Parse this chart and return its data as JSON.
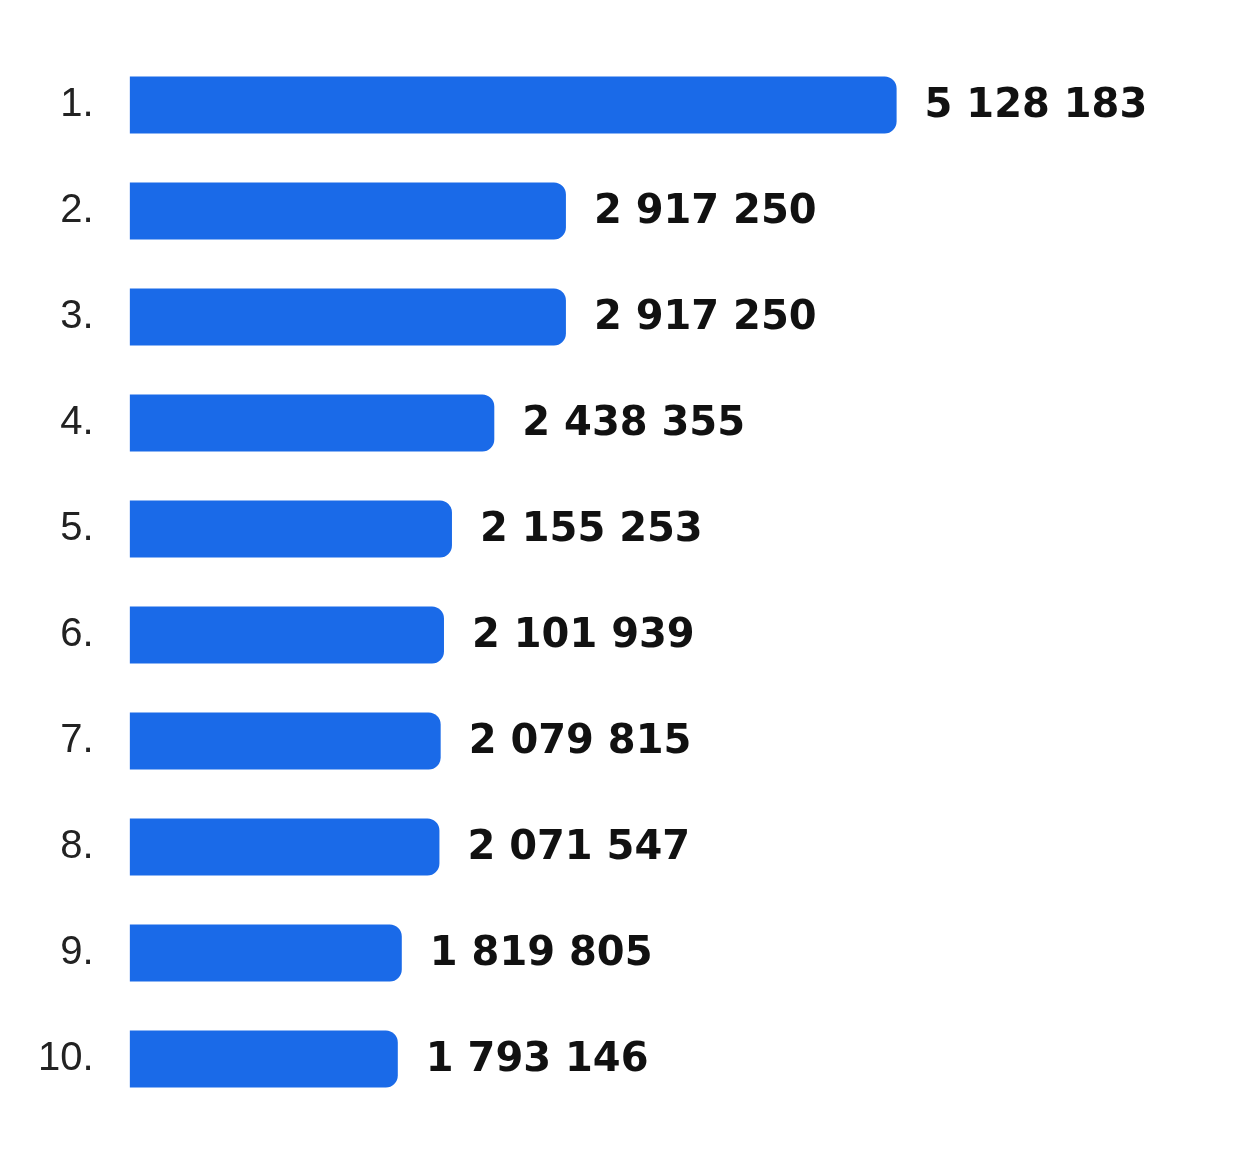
{
  "chart_data": {
    "type": "bar",
    "orientation": "horizontal",
    "categories": [
      "1.",
      "2.",
      "3.",
      "4.",
      "5.",
      "6.",
      "7.",
      "8.",
      "9.",
      "10."
    ],
    "values": [
      5128183,
      2917250,
      2917250,
      2438355,
      2155253,
      2101939,
      2079815,
      2071547,
      1819805,
      1793146
    ],
    "value_labels": [
      "5 128 183",
      "2 917 250",
      "2 917 250",
      "2 438 355",
      "2 155 253",
      "2 101 939",
      "2 079 815",
      "2 071 547",
      "1 819 805",
      "1 793 146"
    ],
    "color": "#1a6ae8"
  }
}
